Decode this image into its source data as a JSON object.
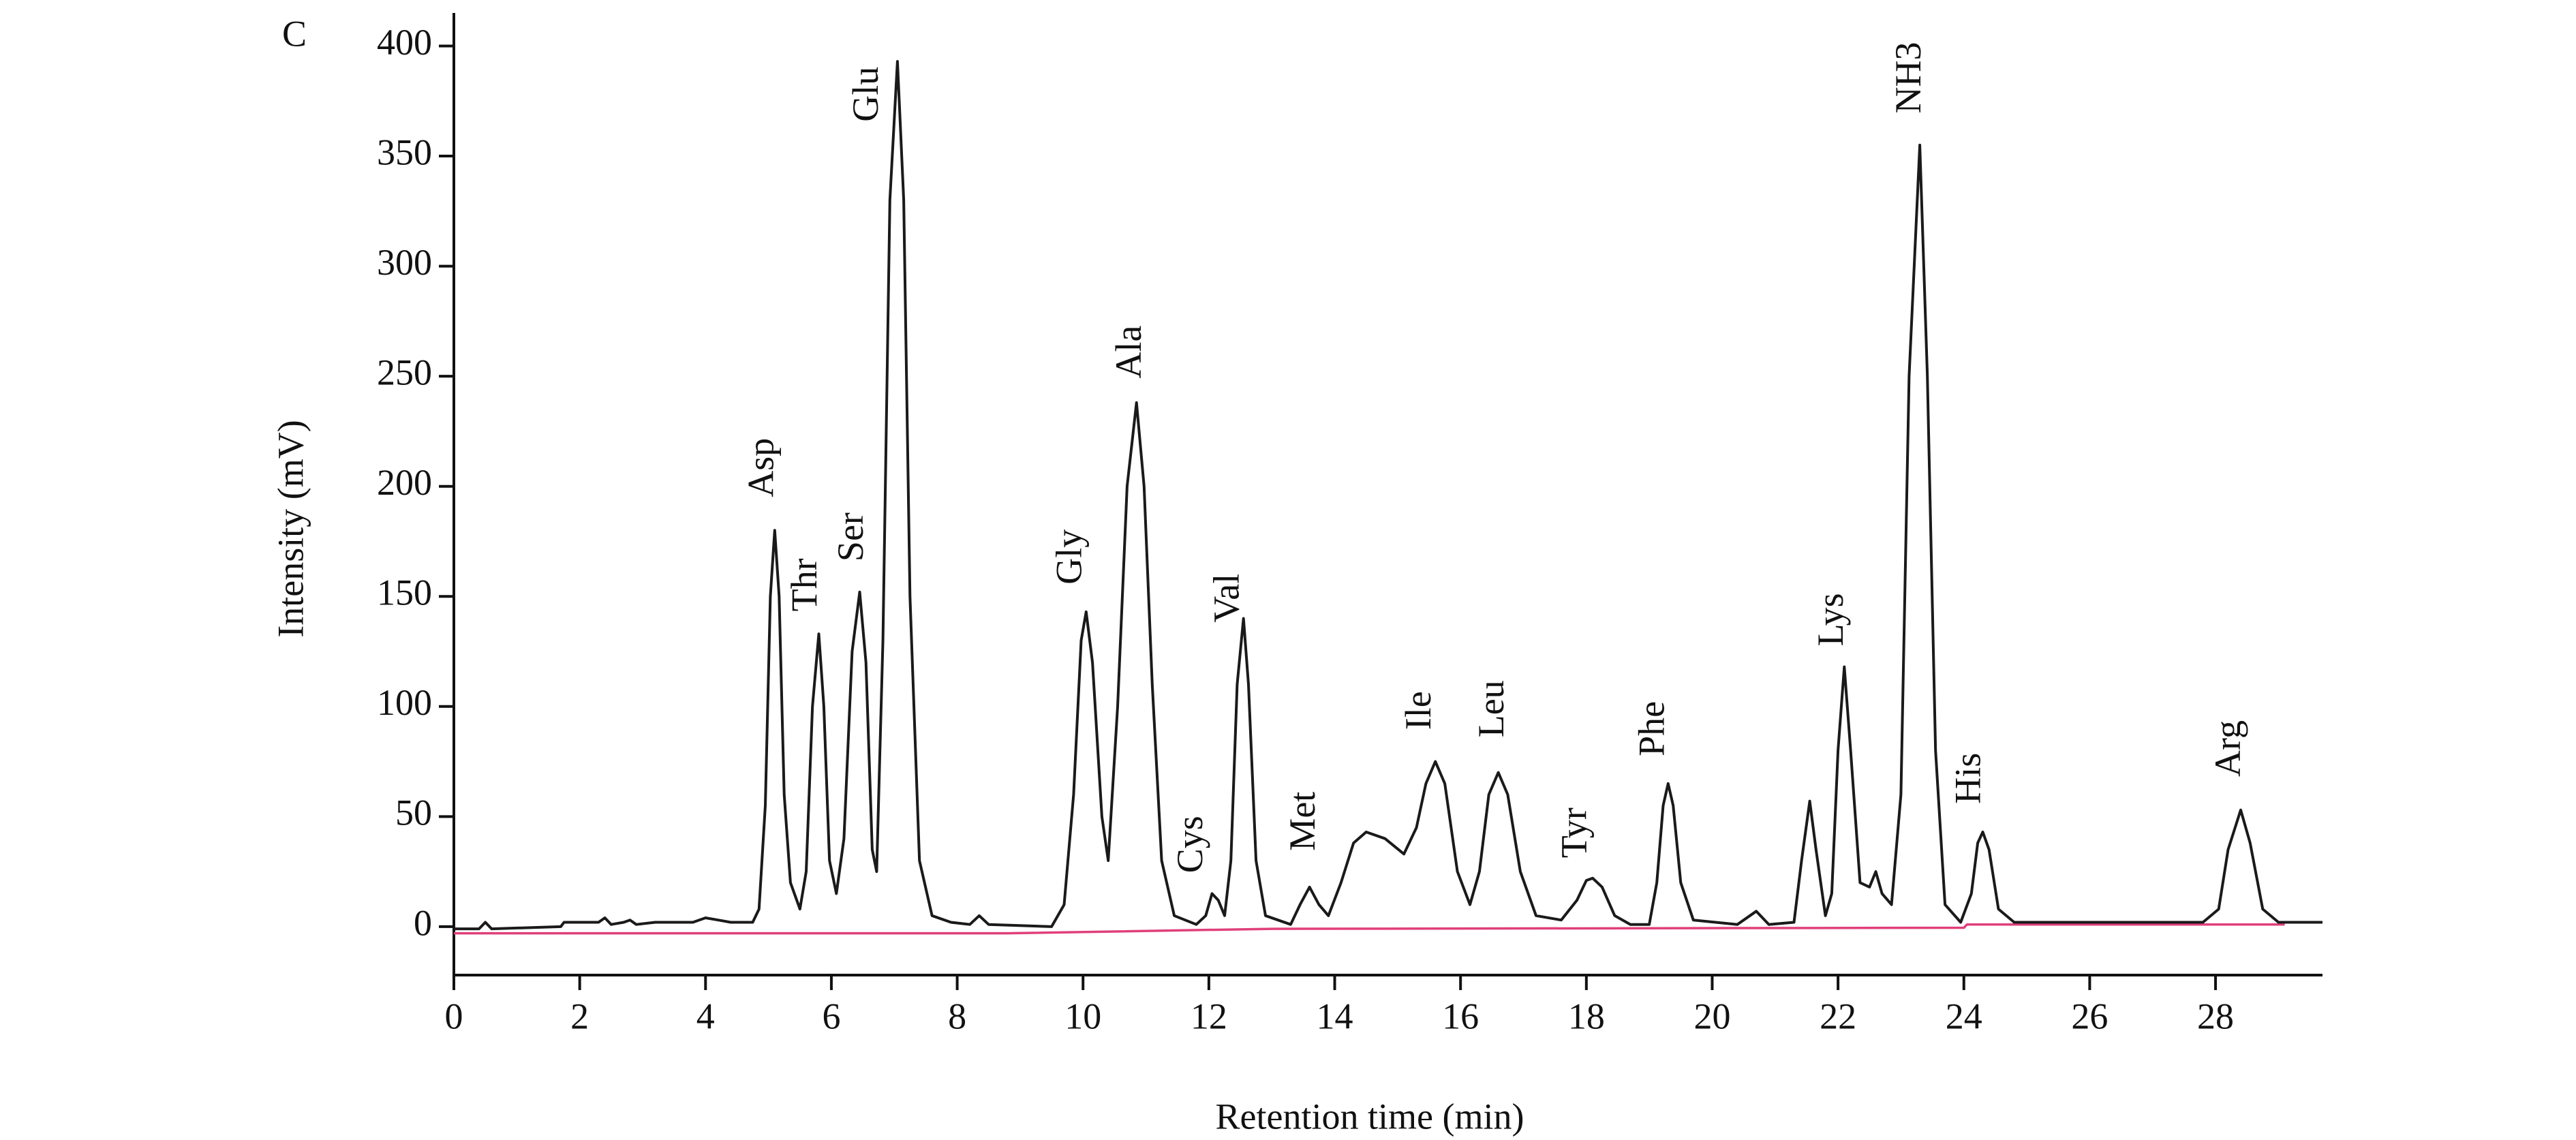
{
  "chart_data": {
    "type": "line",
    "panel_label": "C",
    "x_label": "Retention time (min)",
    "y_label": "Intensity (mV)",
    "xlim": [
      0,
      29.7
    ],
    "ylim": [
      -22,
      415
    ],
    "xticks": [
      0,
      2,
      4,
      6,
      8,
      10,
      12,
      14,
      16,
      18,
      20,
      22,
      24,
      26,
      28
    ],
    "yticks": [
      0,
      50,
      100,
      150,
      200,
      250,
      300,
      350,
      400
    ],
    "series": [
      {
        "color": "#1a1a1a",
        "x": [
          0,
          0.4,
          0.5,
          0.6,
          1.7,
          1.75,
          2.3,
          2.4,
          2.5,
          2.7,
          2.8,
          2.9,
          3.2,
          3.8,
          4.0,
          4.2,
          4.4,
          4.75,
          4.85,
          4.95,
          5.03,
          5.1,
          5.17,
          5.25,
          5.35,
          5.5,
          5.6,
          5.7,
          5.8,
          5.88,
          5.97,
          6.08,
          6.2,
          6.33,
          6.45,
          6.55,
          6.65,
          6.72,
          6.82,
          6.93,
          7.05,
          7.15,
          7.25,
          7.4,
          7.6,
          7.9,
          8.2,
          8.35,
          8.5,
          9.5,
          9.7,
          9.85,
          9.97,
          10.05,
          10.15,
          10.3,
          10.4,
          10.55,
          10.7,
          10.85,
          10.97,
          11.1,
          11.25,
          11.45,
          11.8,
          11.95,
          12.05,
          12.15,
          12.25,
          12.35,
          12.45,
          12.55,
          12.63,
          12.75,
          12.9,
          13.3,
          13.45,
          13.6,
          13.75,
          13.9,
          14.1,
          14.3,
          14.5,
          14.8,
          15.1,
          15.3,
          15.45,
          15.6,
          15.75,
          15.95,
          16.15,
          16.3,
          16.45,
          16.6,
          16.75,
          16.95,
          17.2,
          17.6,
          17.85,
          18.0,
          18.1,
          18.25,
          18.45,
          18.7,
          19.0,
          19.12,
          19.22,
          19.3,
          19.38,
          19.5,
          19.7,
          20.4,
          20.7,
          20.9,
          21.3,
          21.42,
          21.55,
          21.65,
          21.8,
          21.9,
          22.0,
          22.1,
          22.2,
          22.35,
          22.5,
          22.6,
          22.7,
          22.85,
          23.0,
          23.13,
          23.3,
          23.42,
          23.55,
          23.7,
          23.95,
          24.12,
          24.22,
          24.3,
          24.4,
          24.55,
          24.8,
          27.8,
          28.05,
          28.2,
          28.4,
          28.55,
          28.75,
          29.0,
          29.7
        ],
        "values": [
          -1,
          -1,
          2,
          -1,
          0,
          2,
          2,
          4,
          1,
          2,
          3,
          1,
          2,
          2,
          4,
          3,
          2,
          2,
          8,
          55,
          150,
          180,
          150,
          60,
          20,
          8,
          25,
          100,
          133,
          100,
          30,
          15,
          40,
          125,
          152,
          120,
          35,
          25,
          130,
          330,
          393,
          330,
          150,
          30,
          5,
          2,
          1,
          5,
          1,
          0,
          10,
          60,
          130,
          143,
          120,
          50,
          30,
          100,
          200,
          238,
          200,
          110,
          30,
          5,
          1,
          5,
          15,
          12,
          5,
          30,
          110,
          140,
          110,
          30,
          5,
          1,
          10,
          18,
          10,
          5,
          20,
          38,
          43,
          40,
          33,
          45,
          65,
          75,
          65,
          25,
          10,
          25,
          60,
          70,
          60,
          25,
          5,
          3,
          12,
          21,
          22,
          18,
          5,
          1,
          1,
          20,
          55,
          65,
          55,
          20,
          3,
          1,
          7,
          1,
          2,
          30,
          57,
          35,
          5,
          15,
          80,
          118,
          80,
          20,
          18,
          25,
          15,
          10,
          60,
          250,
          355,
          250,
          80,
          10,
          2,
          15,
          38,
          43,
          35,
          8,
          2,
          2,
          8,
          35,
          53,
          38,
          8,
          2,
          2
        ]
      },
      {
        "color": "#e0407a",
        "x": [
          0,
          8.8,
          13,
          24,
          24.05,
          29.1
        ],
        "values": [
          -3,
          -3,
          -1,
          -0.5,
          1,
          1
        ]
      }
    ],
    "annotations": [
      "Asp",
      "Thr",
      "Ser",
      "Glu",
      "Gly",
      "Ala",
      "Cys",
      "Val",
      "Met",
      "Ile",
      "Leu",
      "Tyr",
      "Phe",
      "Lys",
      "NH3",
      "His",
      "Arg"
    ],
    "annotation_color": "#2d5a1b"
  }
}
